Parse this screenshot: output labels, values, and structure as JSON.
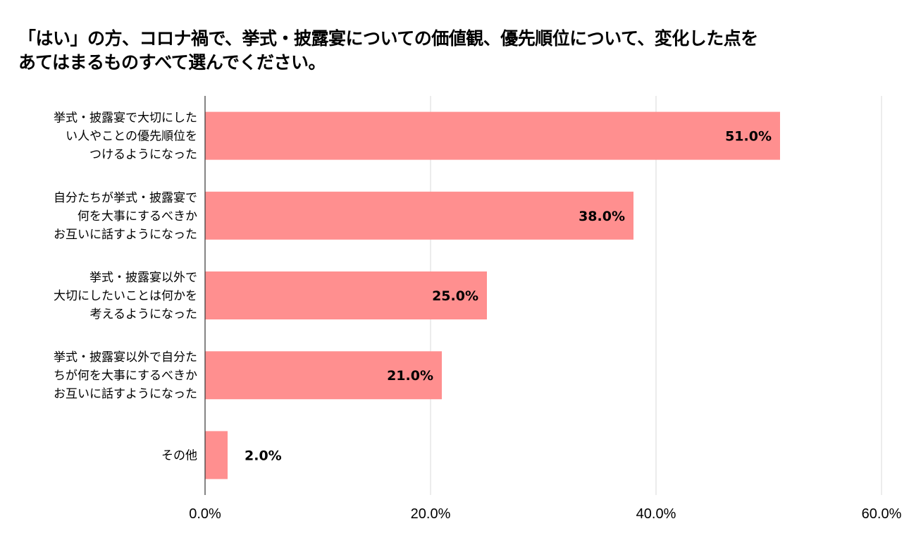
{
  "chart_data": {
    "type": "bar",
    "orientation": "horizontal",
    "title_lines": [
      "「はい」の方、コロナ禍で、挙式・披露宴についての価値観、優先順位について、変化した点を",
      "あてはまるものすべて選んでください。"
    ],
    "categories": [
      [
        "挙式・披露宴で大切にした",
        "い人やことの優先順位を",
        "つけるようになった"
      ],
      [
        "自分たちが挙式・披露宴で",
        "何を大事にするべきか",
        "お互いに話すようになった"
      ],
      [
        "挙式・披露宴以外で",
        "大切にしたいことは何かを",
        "考えるようになった"
      ],
      [
        "挙式・披露宴以外で自分た",
        "ちが何を大事にするべきか",
        "お互いに話すようになった"
      ],
      [
        "その他"
      ]
    ],
    "values": [
      51.0,
      38.0,
      25.0,
      21.0,
      2.0
    ],
    "data_labels": [
      "51.0%",
      "38.0%",
      "25.0%",
      "21.0%",
      "2.0%"
    ],
    "xlim": [
      0,
      60
    ],
    "x_ticks": [
      0,
      20,
      40,
      60
    ],
    "x_tick_labels": [
      "0.0%",
      "20.0%",
      "40.0%",
      "60.0%"
    ],
    "grid": true,
    "legend": "none",
    "colors": {
      "bar": "#ff8f8f",
      "grid": "#d9d9d9",
      "axis": "#333333",
      "text": "#000000"
    }
  }
}
